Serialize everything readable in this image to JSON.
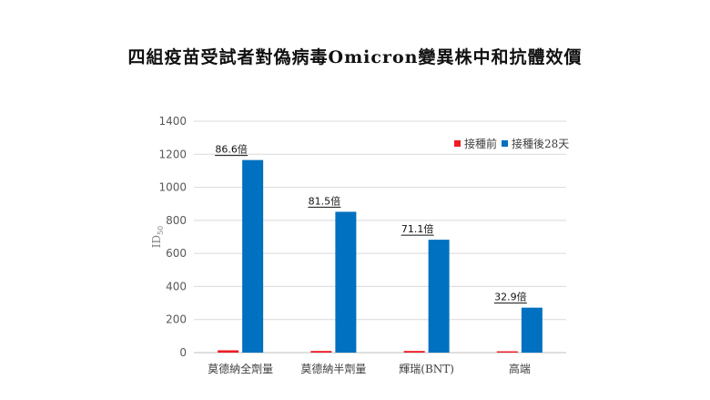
{
  "chart_data": {
    "type": "bar",
    "title": "四組疫苗受試者對偽病毒Omicron變異株中和抗體效價",
    "ylabel_main": "ID",
    "ylabel_sub": "50",
    "xlabel": "",
    "ylim": [
      0,
      1400
    ],
    "yticks": [
      0,
      200,
      400,
      600,
      800,
      1000,
      1200,
      1400
    ],
    "grid": true,
    "legend_position": "top-right",
    "categories": [
      "莫德納全劑量",
      "莫德納半劑量",
      "輝瑞(BNT)",
      "高端"
    ],
    "series": [
      {
        "name": "接種前",
        "color": "#ee1c25",
        "values": [
          14,
          10,
          10,
          8
        ]
      },
      {
        "name": "接種後28天",
        "color": "#0070c0",
        "values": [
          1165,
          852,
          683,
          272
        ]
      }
    ],
    "annotations": [
      "86.6倍",
      "81.5倍",
      "71.1倍",
      "32.9倍"
    ]
  }
}
